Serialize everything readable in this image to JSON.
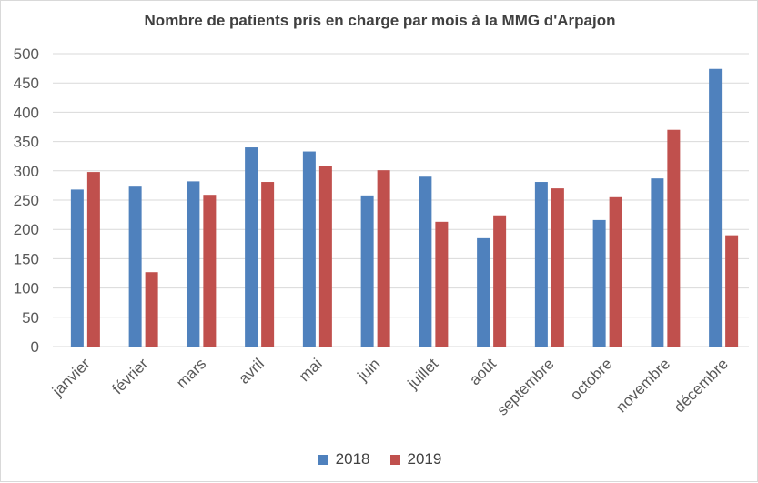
{
  "chart_data": {
    "type": "bar",
    "title": "Nombre de patients pris en charge par mois à la MMG d'Arpajon",
    "categories": [
      "janvier",
      "février",
      "mars",
      "avril",
      "mai",
      "juin",
      "juillet",
      "août",
      "septembre",
      "octobre",
      "novembre",
      "décembre"
    ],
    "series": [
      {
        "name": "2018",
        "color": "#4f81bd",
        "values": [
          268,
          273,
          282,
          340,
          333,
          258,
          290,
          185,
          281,
          216,
          287,
          474
        ]
      },
      {
        "name": "2019",
        "color": "#c0504d",
        "values": [
          298,
          127,
          259,
          281,
          309,
          301,
          213,
          224,
          270,
          255,
          370,
          190
        ]
      }
    ],
    "ylim": [
      0,
      500
    ],
    "yticks": [
      0,
      50,
      100,
      150,
      200,
      250,
      300,
      350,
      400,
      450,
      500
    ],
    "grid": true,
    "legend": "bottom",
    "gridColor": "#d9d9d9",
    "textColor": "#595959"
  }
}
